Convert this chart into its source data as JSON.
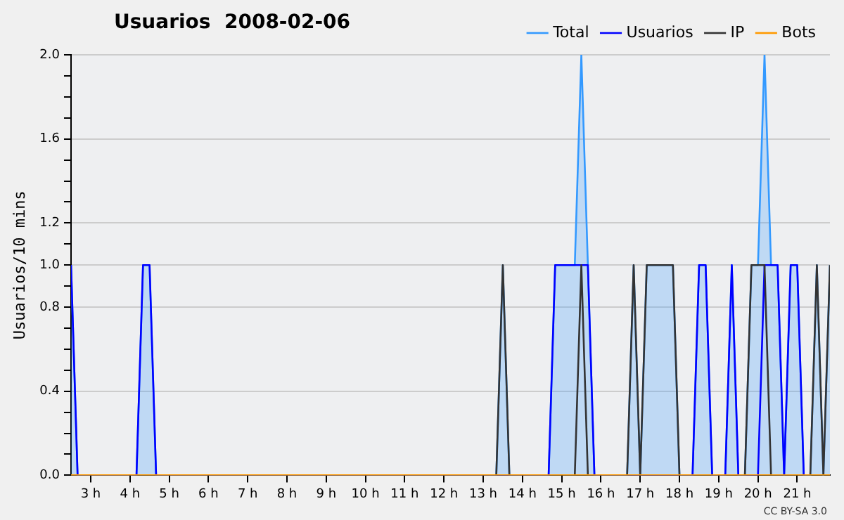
{
  "chart_data": {
    "type": "line",
    "title": "Usuarios  2008-02-06",
    "ylabel": "Usuarios/10 mins",
    "annotations": [
      "CC BY-SA 3.0"
    ],
    "xlim": [
      "2008-02-06T02:30",
      "2008-02-06T21:50"
    ],
    "xticks": [
      {
        "value": "2008-02-06T03:00",
        "label": "3 h"
      },
      {
        "value": "2008-02-06T04:00",
        "label": "4 h"
      },
      {
        "value": "2008-02-06T05:00",
        "label": "5 h"
      },
      {
        "value": "2008-02-06T06:00",
        "label": "6 h"
      },
      {
        "value": "2008-02-06T07:00",
        "label": "7 h"
      },
      {
        "value": "2008-02-06T08:00",
        "label": "8 h"
      },
      {
        "value": "2008-02-06T09:00",
        "label": "9 h"
      },
      {
        "value": "2008-02-06T10:00",
        "label": "10 h"
      },
      {
        "value": "2008-02-06T11:00",
        "label": "11 h"
      },
      {
        "value": "2008-02-06T12:00",
        "label": "12 h"
      },
      {
        "value": "2008-02-06T13:00",
        "label": "13 h"
      },
      {
        "value": "2008-02-06T14:00",
        "label": "14 h"
      },
      {
        "value": "2008-02-06T15:00",
        "label": "15 h"
      },
      {
        "value": "2008-02-06T16:00",
        "label": "16 h"
      },
      {
        "value": "2008-02-06T17:00",
        "label": "17 h"
      },
      {
        "value": "2008-02-06T18:00",
        "label": "18 h"
      },
      {
        "value": "2008-02-06T19:00",
        "label": "19 h"
      },
      {
        "value": "2008-02-06T20:00",
        "label": "20 h"
      },
      {
        "value": "2008-02-06T21:00",
        "label": "21 h"
      }
    ],
    "ylim": [
      0,
      2
    ],
    "yticks": [
      {
        "value": 0,
        "label": "0.0"
      },
      {
        "value": 0.1,
        "label": null
      },
      {
        "value": 0.2,
        "label": null
      },
      {
        "value": 0.3,
        "label": null
      },
      {
        "value": 0.4,
        "label": "0.4"
      },
      {
        "value": 0.5,
        "label": null
      },
      {
        "value": 0.6,
        "label": null
      },
      {
        "value": 0.7,
        "label": null
      },
      {
        "value": 0.8,
        "label": "0.8"
      },
      {
        "value": 0.9,
        "label": null
      },
      {
        "value": 1,
        "label": "1.0"
      },
      {
        "value": 1.1,
        "label": null
      },
      {
        "value": 1.2,
        "label": "1.2"
      },
      {
        "value": 1.3,
        "label": null
      },
      {
        "value": 1.4,
        "label": null
      },
      {
        "value": 1.5,
        "label": null
      },
      {
        "value": 1.6,
        "label": "1.6"
      },
      {
        "value": 1.7,
        "label": null
      },
      {
        "value": 1.8,
        "label": null
      },
      {
        "value": 1.9,
        "label": null
      },
      {
        "value": 2,
        "label": "2.0"
      }
    ],
    "grid": "y",
    "legend": "top right",
    "marker": "none",
    "line_style": "solid",
    "series": [
      {
        "name": "Total",
        "type": "area",
        "color": "#3399ff",
        "x": [
          "2008-02-06T02:30",
          "2008-02-06T02:40",
          "2008-02-06T04:10",
          "2008-02-06T04:20",
          "2008-02-06T04:30",
          "2008-02-06T04:40",
          "2008-02-06T13:20",
          "2008-02-06T13:30",
          "2008-02-06T13:40",
          "2008-02-06T14:40",
          "2008-02-06T14:50",
          "2008-02-06T15:20",
          "2008-02-06T15:30",
          "2008-02-06T15:40",
          "2008-02-06T15:50",
          "2008-02-06T16:40",
          "2008-02-06T16:50",
          "2008-02-06T17:00",
          "2008-02-06T17:10",
          "2008-02-06T17:50",
          "2008-02-06T18:00",
          "2008-02-06T18:20",
          "2008-02-06T18:30",
          "2008-02-06T18:40",
          "2008-02-06T18:50",
          "2008-02-06T19:10",
          "2008-02-06T19:20",
          "2008-02-06T19:30",
          "2008-02-06T19:40",
          "2008-02-06T19:50",
          "2008-02-06T20:00",
          "2008-02-06T20:10",
          "2008-02-06T20:20",
          "2008-02-06T20:30",
          "2008-02-06T20:40",
          "2008-02-06T20:50",
          "2008-02-06T21:00",
          "2008-02-06T21:10",
          "2008-02-06T21:20",
          "2008-02-06T21:30",
          "2008-02-06T21:40",
          "2008-02-06T21:50"
        ],
        "values": [
          1,
          0,
          0,
          1,
          1,
          0,
          0,
          1,
          0,
          0,
          1,
          1,
          2,
          1,
          0,
          0,
          1,
          0,
          1,
          1,
          0,
          0,
          1,
          1,
          0,
          0,
          1,
          0,
          0,
          1,
          1,
          2,
          1,
          1,
          0,
          1,
          1,
          0,
          0,
          1,
          0,
          1
        ]
      },
      {
        "name": "Usuarios",
        "color": "#0000ff",
        "x": [
          "2008-02-06T02:30",
          "2008-02-06T02:40",
          "2008-02-06T04:10",
          "2008-02-06T04:20",
          "2008-02-06T04:30",
          "2008-02-06T04:40",
          "2008-02-06T14:40",
          "2008-02-06T14:50",
          "2008-02-06T15:40",
          "2008-02-06T15:50",
          "2008-02-06T18:20",
          "2008-02-06T18:30",
          "2008-02-06T18:40",
          "2008-02-06T18:50",
          "2008-02-06T19:10",
          "2008-02-06T19:20",
          "2008-02-06T19:30",
          "2008-02-06T20:00",
          "2008-02-06T20:10",
          "2008-02-06T20:30",
          "2008-02-06T20:40",
          "2008-02-06T20:50",
          "2008-02-06T21:00",
          "2008-02-06T21:10"
        ],
        "values": [
          1,
          0,
          0,
          1,
          1,
          0,
          0,
          1,
          1,
          0,
          0,
          1,
          1,
          0,
          0,
          1,
          0,
          0,
          1,
          1,
          0,
          1,
          1,
          0
        ]
      },
      {
        "name": "IP",
        "color": "#333333",
        "x": [
          "2008-02-06T02:30",
          "2008-02-06T13:20",
          "2008-02-06T13:30",
          "2008-02-06T13:40",
          "2008-02-06T15:20",
          "2008-02-06T15:30",
          "2008-02-06T15:40",
          "2008-02-06T16:40",
          "2008-02-06T16:50",
          "2008-02-06T17:00",
          "2008-02-06T17:10",
          "2008-02-06T17:50",
          "2008-02-06T18:00",
          "2008-02-06T19:40",
          "2008-02-06T19:50",
          "2008-02-06T20:10",
          "2008-02-06T20:20",
          "2008-02-06T21:20",
          "2008-02-06T21:30",
          "2008-02-06T21:40",
          "2008-02-06T21:50"
        ],
        "values": [
          0,
          0,
          1,
          0,
          0,
          1,
          0,
          0,
          1,
          0,
          1,
          1,
          0,
          0,
          1,
          1,
          0,
          0,
          1,
          0,
          1
        ]
      },
      {
        "name": "Bots",
        "color": "#ff9900",
        "x": [
          "2008-02-06T02:30",
          "2008-02-06T21:50"
        ],
        "values": [
          0,
          0
        ]
      }
    ]
  }
}
